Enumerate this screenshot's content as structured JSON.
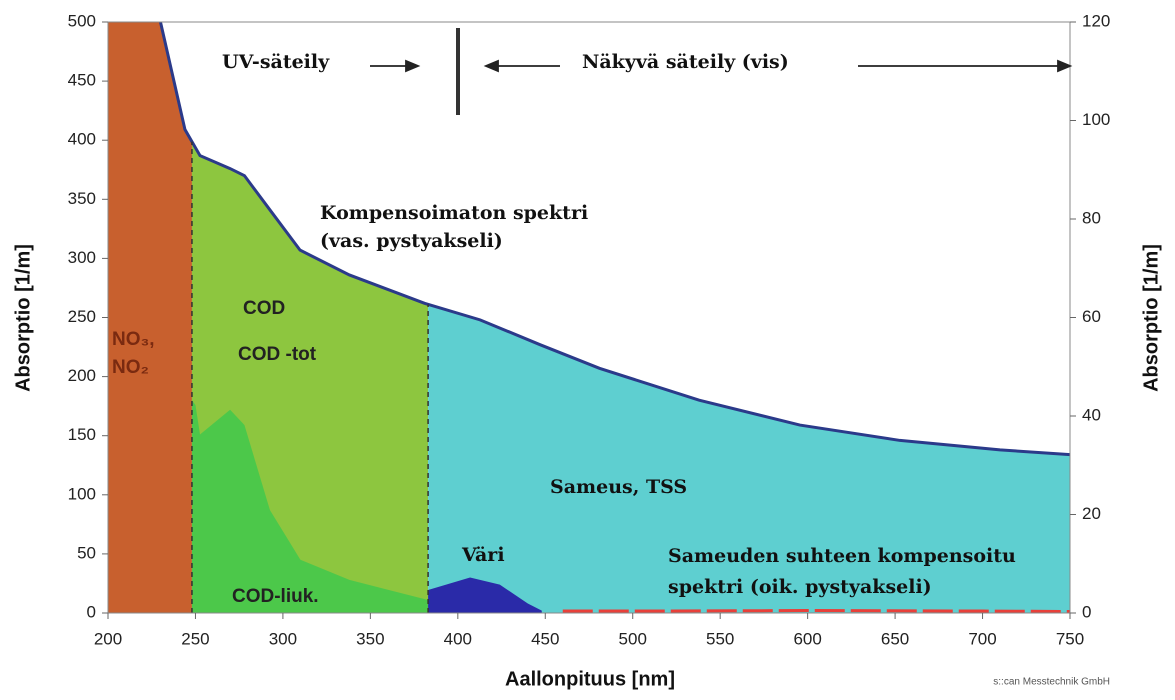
{
  "chart_data": {
    "type": "area",
    "xlabel": "Aallonpituus   [nm]",
    "ylabel": "Absorptio   [1/m]",
    "y2label": "Absorptio   [1/m]",
    "credit": "s::can Messtechnik GmbH",
    "xlim": [
      200,
      750
    ],
    "ylim": [
      0,
      500
    ],
    "y2lim": [
      0,
      120
    ],
    "xticks": [
      200,
      250,
      300,
      350,
      400,
      450,
      500,
      550,
      600,
      650,
      700,
      750
    ],
    "yticks": [
      0,
      50,
      100,
      150,
      200,
      250,
      300,
      350,
      400,
      450,
      500
    ],
    "y2ticks": [
      0,
      20,
      40,
      60,
      80,
      100,
      120
    ],
    "regions": [
      {
        "from": 200,
        "to": 248,
        "color": "#c8602e",
        "label": [
          "NO₃,",
          "NO₂"
        ]
      },
      {
        "from": 248,
        "to": 383,
        "color": "#8dc63f",
        "label": [
          "COD",
          "COD -tot"
        ]
      },
      {
        "from": 383,
        "to": 750,
        "color": "#5ecfd0",
        "label": [
          "Sameus, TSS"
        ]
      }
    ],
    "annotations": {
      "uv": "UV-säteily",
      "vis": "Näkyvä säteily (vis)",
      "spectrum": [
        "Kompensoimaton spektri",
        "(vas. pystyakseli)"
      ],
      "compensated": [
        "Sameuden suhteen kompensoitu",
        "spektri (oik. pystyakseli)"
      ]
    },
    "series": [
      {
        "color": "#2b3a8a",
        "x": [
          230,
          244,
          252.6,
          269.8,
          278,
          292.6,
          309.8,
          338,
          381,
          412.7,
          447,
          481,
          538,
          595.6,
          652.8,
          710,
          750
        ],
        "values": [
          500,
          409,
          387,
          376,
          370,
          341,
          307,
          286,
          262,
          248,
          227,
          207,
          180,
          159,
          146,
          138,
          134
        ]
      },
      {
        "name": "COD-liuk.",
        "color": "#4cc84a",
        "x": [
          248,
          250,
          252.6,
          269.8,
          278,
          292.6,
          310,
          338,
          383
        ],
        "values": [
          180,
          176,
          151,
          172,
          159,
          87,
          45,
          28,
          11
        ]
      },
      {
        "name": "Väri",
        "color": "#2a2aa8",
        "x": [
          383,
          407,
          424,
          440,
          448
        ],
        "values": [
          19.5,
          30,
          24,
          8,
          2
        ]
      },
      {
        "color": "#e8403a",
        "axis": "y2",
        "x": [
          460,
          520,
          600,
          700,
          750
        ],
        "values": [
          0.4,
          0.4,
          0.5,
          0.4,
          0.3
        ]
      }
    ]
  }
}
